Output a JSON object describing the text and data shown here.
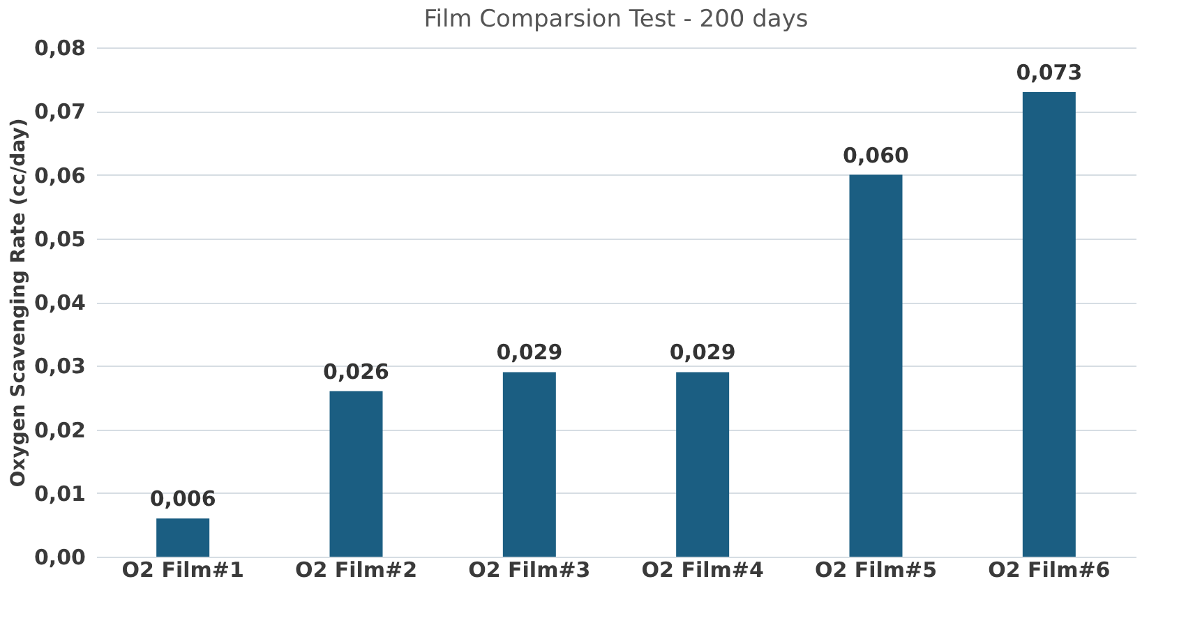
{
  "chart_data": {
    "type": "bar",
    "title": "Film Comparsion Test - 200 days",
    "ylabel": "Oxygen Scavenging Rate (cc/day)",
    "categories": [
      "O2 Film#1",
      "O2 Film#2",
      "O2 Film#3",
      "O2 Film#4",
      "O2 Film#5",
      "O2 Film#6"
    ],
    "values": [
      0.006,
      0.026,
      0.029,
      0.029,
      0.06,
      0.073
    ],
    "value_labels": [
      "0,006",
      "0,026",
      "0,029",
      "0,029",
      "0,060",
      "0,073"
    ],
    "color": "#1b5e82",
    "ylim": [
      0,
      0.08
    ],
    "yticks": [
      {
        "value": 0,
        "label": "0,00"
      },
      {
        "value": 0.01,
        "label": "0,01"
      },
      {
        "value": 0.02,
        "label": "0,02"
      },
      {
        "value": 0.03,
        "label": "0,03"
      },
      {
        "value": 0.04,
        "label": "0,04"
      },
      {
        "value": 0.05,
        "label": "0,05"
      },
      {
        "value": 0.06,
        "label": "0,06"
      },
      {
        "value": 0.07,
        "label": "0,07"
      },
      {
        "value": 0.08,
        "label": "0,08"
      }
    ],
    "grid": "y"
  }
}
